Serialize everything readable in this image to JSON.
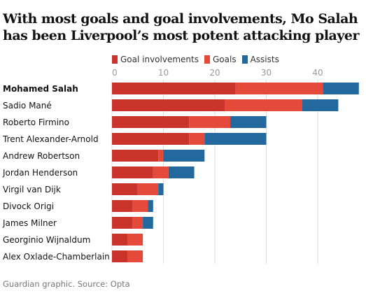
{
  "title": "With most goals and goal involvements, Mo Salah has been Liverpool’s most potent attacking player",
  "source": "Guardian graphic. Source: Opta",
  "colors": {
    "goal_involvements": "#c8332b",
    "goals": "#e5493a",
    "assists": "#23699e"
  },
  "chart_data": {
    "type": "bar",
    "orientation": "horizontal",
    "stacked": true,
    "legend": [
      {
        "name": "Goal involvements",
        "color": "#c8332b"
      },
      {
        "name": "Goals",
        "color": "#e5493a"
      },
      {
        "name": "Assists",
        "color": "#23699e"
      }
    ],
    "categories": [
      "Mohamed Salah",
      "Sadio Mané",
      "Roberto Firmino",
      "Trent Alexander-Arnold",
      "Andrew Robertson",
      "Jordan Henderson",
      "Virgil van Dijk",
      "Divock Origi",
      "James Milner",
      "Georginio Wijnaldum",
      "Alex Oxlade-Chamberlain"
    ],
    "highlight": "Mohamed Salah",
    "series": [
      {
        "name": "Goal involvements",
        "values": [
          24,
          22,
          15,
          15,
          9,
          8,
          5,
          4,
          4,
          3,
          3
        ]
      },
      {
        "name": "Goals",
        "values": [
          17,
          15,
          8,
          3,
          1,
          3,
          4,
          3,
          2,
          3,
          3
        ]
      },
      {
        "name": "Assists",
        "values": [
          7,
          7,
          7,
          12,
          8,
          5,
          1,
          1,
          2,
          0,
          0
        ]
      }
    ],
    "x_ticks": [
      0,
      10,
      20,
      30,
      40
    ],
    "xlim": [
      0,
      48
    ],
    "legend_position": "top",
    "grid": true,
    "legend_layout": "top"
  }
}
